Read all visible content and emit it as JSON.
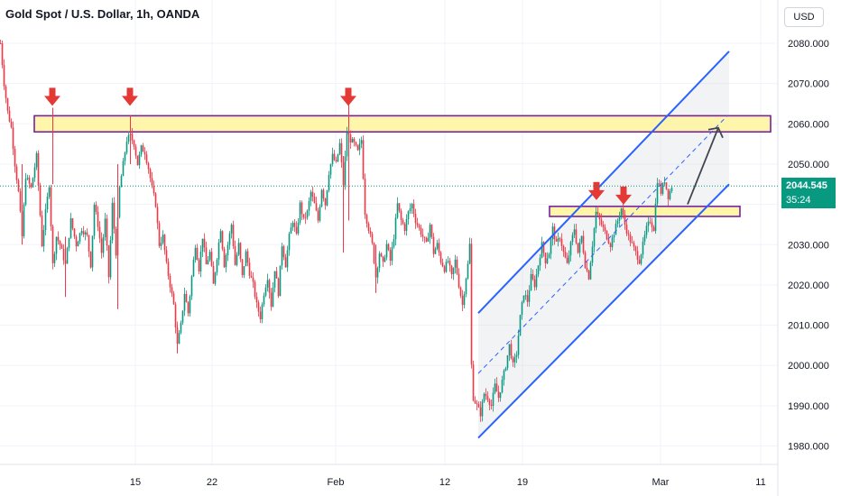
{
  "header": {
    "title": "Gold Spot / U.S. Dollar, 1h, OANDA"
  },
  "currency_button": {
    "label": "USD"
  },
  "last_price": {
    "value": "2044.545",
    "countdown": "35:24",
    "color": "#089981"
  },
  "colors": {
    "up": "#089981",
    "down": "#f23645",
    "channel": "#2962ff",
    "zone_fill": "#fff59d",
    "zone_border": "#7b1fa2",
    "marker": "#e53935"
  },
  "chart_data": {
    "type": "candlestick",
    "title": "Gold Spot / U.S. Dollar, 1h, OANDA",
    "y_axis": {
      "side": "right",
      "ylim": [
        1976,
        2086
      ],
      "ticks": [
        "2080.000",
        "2070.000",
        "2060.000",
        "2050.000",
        "2040.000",
        "2030.000",
        "2020.000",
        "2010.000",
        "2000.000",
        "1990.000",
        "1980.000"
      ]
    },
    "x_axis": {
      "ticks": [
        "15",
        "22",
        "Feb",
        "12",
        "19",
        "Mar",
        "11"
      ]
    },
    "path_anchors": [
      [
        0,
        2080
      ],
      [
        4,
        2070
      ],
      [
        8,
        2063
      ],
      [
        12,
        2059
      ],
      [
        16,
        2050
      ],
      [
        20,
        2043
      ],
      [
        24,
        2032
      ],
      [
        28,
        2047
      ],
      [
        34,
        2044
      ],
      [
        40,
        2052
      ],
      [
        46,
        2030
      ],
      [
        50,
        2038
      ],
      [
        54,
        2045
      ],
      [
        58,
        2025
      ],
      [
        62,
        2032
      ],
      [
        66,
        2030
      ],
      [
        72,
        2025
      ],
      [
        78,
        2036
      ],
      [
        84,
        2030
      ],
      [
        90,
        2034
      ],
      [
        96,
        2032
      ],
      [
        100,
        2025
      ],
      [
        104,
        2040
      ],
      [
        108,
        2035
      ],
      [
        112,
        2028
      ],
      [
        116,
        2036
      ],
      [
        120,
        2022
      ],
      [
        124,
        2040
      ],
      [
        128,
        2028
      ],
      [
        132,
        2044
      ],
      [
        136,
        2050
      ],
      [
        140,
        2056
      ],
      [
        144,
        2057
      ],
      [
        148,
        2055
      ],
      [
        152,
        2050
      ],
      [
        156,
        2054
      ],
      [
        160,
        2053
      ],
      [
        164,
        2049
      ],
      [
        168,
        2044
      ],
      [
        172,
        2040
      ],
      [
        176,
        2030
      ],
      [
        180,
        2032
      ],
      [
        184,
        2025
      ],
      [
        188,
        2020
      ],
      [
        192,
        2015
      ],
      [
        196,
        2005
      ],
      [
        200,
        2010
      ],
      [
        204,
        2018
      ],
      [
        208,
        2013
      ],
      [
        212,
        2022
      ],
      [
        216,
        2030
      ],
      [
        220,
        2024
      ],
      [
        224,
        2032
      ],
      [
        228,
        2025
      ],
      [
        232,
        2028
      ],
      [
        236,
        2020
      ],
      [
        240,
        2027
      ],
      [
        244,
        2034
      ],
      [
        248,
        2025
      ],
      [
        252,
        2030
      ],
      [
        256,
        2035
      ],
      [
        260,
        2025
      ],
      [
        264,
        2030
      ],
      [
        268,
        2022
      ],
      [
        272,
        2028
      ],
      [
        276,
        2023
      ],
      [
        280,
        2020
      ],
      [
        284,
        2015
      ],
      [
        288,
        2012
      ],
      [
        292,
        2018
      ],
      [
        296,
        2022
      ],
      [
        300,
        2015
      ],
      [
        304,
        2024
      ],
      [
        308,
        2018
      ],
      [
        312,
        2030
      ],
      [
        316,
        2025
      ],
      [
        320,
        2032
      ],
      [
        324,
        2036
      ],
      [
        328,
        2032
      ],
      [
        332,
        2040
      ],
      [
        336,
        2036
      ],
      [
        340,
        2038
      ],
      [
        344,
        2043
      ],
      [
        348,
        2040
      ],
      [
        352,
        2036
      ],
      [
        356,
        2044
      ],
      [
        360,
        2040
      ],
      [
        364,
        2048
      ],
      [
        368,
        2052
      ],
      [
        372,
        2050
      ],
      [
        376,
        2055
      ],
      [
        380,
        2045
      ],
      [
        384,
        2058
      ],
      [
        388,
        2056
      ],
      [
        392,
        2055
      ],
      [
        396,
        2053
      ],
      [
        400,
        2056
      ],
      [
        404,
        2038
      ],
      [
        408,
        2034
      ],
      [
        412,
        2030
      ],
      [
        416,
        2022
      ],
      [
        420,
        2028
      ],
      [
        424,
        2025
      ],
      [
        428,
        2030
      ],
      [
        432,
        2026
      ],
      [
        436,
        2032
      ],
      [
        440,
        2040
      ],
      [
        444,
        2036
      ],
      [
        448,
        2034
      ],
      [
        452,
        2038
      ],
      [
        456,
        2040
      ],
      [
        460,
        2036
      ],
      [
        464,
        2034
      ],
      [
        468,
        2032
      ],
      [
        472,
        2030
      ],
      [
        476,
        2035
      ],
      [
        480,
        2028
      ],
      [
        484,
        2030
      ],
      [
        488,
        2026
      ],
      [
        492,
        2024
      ],
      [
        496,
        2026
      ],
      [
        500,
        2022
      ],
      [
        504,
        2026
      ],
      [
        508,
        2020
      ],
      [
        512,
        2015
      ],
      [
        516,
        2022
      ],
      [
        518,
        2025
      ],
      [
        520,
        2030
      ],
      [
        522,
        2000
      ],
      [
        524,
        1992
      ],
      [
        528,
        1990
      ],
      [
        532,
        1988
      ],
      [
        536,
        1993
      ],
      [
        540,
        1992
      ],
      [
        544,
        1990
      ],
      [
        548,
        1995
      ],
      [
        552,
        1992
      ],
      [
        556,
        1996
      ],
      [
        560,
        2000
      ],
      [
        564,
        2005
      ],
      [
        568,
        2000
      ],
      [
        572,
        2003
      ],
      [
        576,
        2012
      ],
      [
        580,
        2018
      ],
      [
        584,
        2016
      ],
      [
        588,
        2022
      ],
      [
        592,
        2020
      ],
      [
        596,
        2025
      ],
      [
        600,
        2030
      ],
      [
        604,
        2026
      ],
      [
        608,
        2028
      ],
      [
        612,
        2034
      ],
      [
        616,
        2030
      ],
      [
        620,
        2032
      ],
      [
        624,
        2028
      ],
      [
        628,
        2025
      ],
      [
        632,
        2030
      ],
      [
        636,
        2034
      ],
      [
        640,
        2028
      ],
      [
        644,
        2032
      ],
      [
        648,
        2025
      ],
      [
        652,
        2022
      ],
      [
        656,
        2030
      ],
      [
        660,
        2038
      ],
      [
        664,
        2036
      ],
      [
        668,
        2034
      ],
      [
        672,
        2032
      ],
      [
        676,
        2030
      ],
      [
        680,
        2033
      ],
      [
        684,
        2036
      ],
      [
        688,
        2039
      ],
      [
        692,
        2035
      ],
      [
        696,
        2032
      ],
      [
        700,
        2030
      ],
      [
        704,
        2028
      ],
      [
        708,
        2026
      ],
      [
        712,
        2030
      ],
      [
        716,
        2034
      ],
      [
        720,
        2036
      ],
      [
        724,
        2034
      ],
      [
        728,
        2046
      ],
      [
        732,
        2043
      ],
      [
        736,
        2046
      ],
      [
        740,
        2042
      ],
      [
        744,
        2044.5
      ]
    ],
    "current_price": 2044.545,
    "resistance_zone": {
      "top": 2062,
      "bottom": 2058
    },
    "support_zone": {
      "top": 2039.5,
      "bottom": 2037
    },
    "channel": {
      "upper": [
        [
          530,
          2013
        ],
        [
          808,
          2078
        ]
      ],
      "lower": [
        [
          530,
          1982
        ],
        [
          808,
          2045
        ]
      ],
      "mid_dashed": [
        [
          530,
          1998
        ],
        [
          806,
          2062
        ]
      ]
    },
    "projection_arrow": {
      "from": [
        762,
        2040
      ],
      "to": [
        796,
        2059
      ]
    },
    "resistance_markers_x": [
      58,
      144,
      386
    ],
    "support_markers_x": [
      661,
      691
    ]
  }
}
